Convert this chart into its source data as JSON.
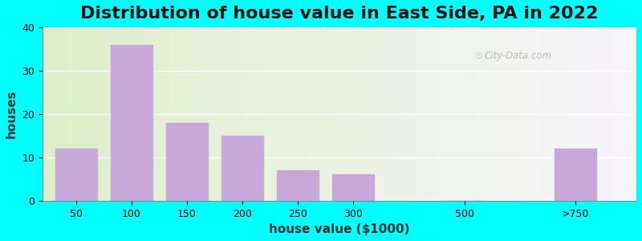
{
  "title": "Distribution of house value in East Side, PA in 2022",
  "xlabel": "house value ($1000)",
  "ylabel": "houses",
  "bar_labels": [
    "50",
    "100",
    "150",
    "200",
    "250",
    "300",
    "500",
    ">750"
  ],
  "bar_values": [
    12,
    36,
    18,
    15,
    7,
    6,
    0,
    12
  ],
  "bar_color": "#C8A8D8",
  "bar_positions": [
    0,
    1,
    2,
    3,
    4,
    5,
    7,
    9
  ],
  "ylim": [
    0,
    40
  ],
  "xlim": [
    -0.6,
    10.1
  ],
  "yticks": [
    0,
    10,
    20,
    30,
    40
  ],
  "bg_outer": "#00FFFF",
  "bg_inner_left": "#DDEFC8",
  "bg_inner_right": "#F8F5FC",
  "title_fontsize": 16,
  "axis_fontsize": 11,
  "tick_fontsize": 9,
  "watermark": "City-Data.com"
}
